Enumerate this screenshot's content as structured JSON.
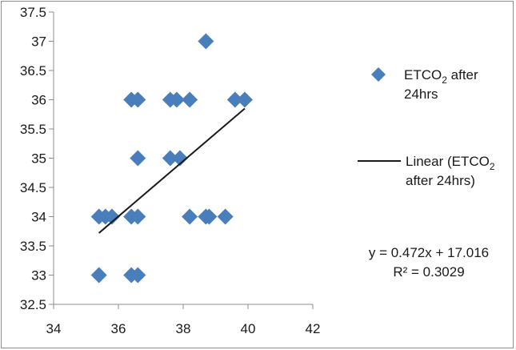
{
  "chart_data": {
    "type": "scatter",
    "title": "",
    "xlabel": "",
    "ylabel": "",
    "xlim": [
      34,
      42
    ],
    "ylim": [
      32.5,
      37.5
    ],
    "x_ticks": [
      "34",
      "36",
      "38",
      "40",
      "42"
    ],
    "y_ticks": [
      "32.5",
      "33",
      "33.5",
      "34",
      "34.5",
      "35",
      "35.5",
      "36",
      "36.5",
      "37",
      "37.5"
    ],
    "grid": false,
    "legend_position": "right",
    "series": [
      {
        "name": "ETCO₂ after 24hrs",
        "name_main": "ETCO",
        "name_sub": "2",
        "name_rest_line1": " after",
        "name_line2": "24hrs",
        "color": "#4a7ebb",
        "marker": "diamond",
        "points": [
          {
            "x": 35.4,
            "y": 34
          },
          {
            "x": 35.6,
            "y": 34
          },
          {
            "x": 35.8,
            "y": 34
          },
          {
            "x": 36.4,
            "y": 34
          },
          {
            "x": 36.6,
            "y": 34
          },
          {
            "x": 38.2,
            "y": 34
          },
          {
            "x": 38.7,
            "y": 34
          },
          {
            "x": 38.8,
            "y": 34
          },
          {
            "x": 39.3,
            "y": 34
          },
          {
            "x": 35.4,
            "y": 33
          },
          {
            "x": 36.4,
            "y": 33
          },
          {
            "x": 36.6,
            "y": 33
          },
          {
            "x": 36.6,
            "y": 35
          },
          {
            "x": 37.6,
            "y": 35
          },
          {
            "x": 37.9,
            "y": 35
          },
          {
            "x": 36.4,
            "y": 36
          },
          {
            "x": 36.6,
            "y": 36
          },
          {
            "x": 37.6,
            "y": 36
          },
          {
            "x": 37.8,
            "y": 36
          },
          {
            "x": 38.2,
            "y": 36
          },
          {
            "x": 39.6,
            "y": 36
          },
          {
            "x": 39.9,
            "y": 36
          },
          {
            "x": 38.7,
            "y": 37
          }
        ]
      }
    ],
    "trendline": {
      "type": "linear",
      "label_line1_main": "Linear (ETCO",
      "label_line1_sub": "2",
      "label_line2": "after 24hrs)",
      "color": "#1a1a1a",
      "slope": 0.472,
      "intercept": 17.016,
      "x_range": [
        35.4,
        39.9
      ],
      "y_range": [
        33.72,
        35.85
      ],
      "equation": "y = 0.472x + 17.016",
      "r_squared": "R² = 0.3029"
    }
  }
}
